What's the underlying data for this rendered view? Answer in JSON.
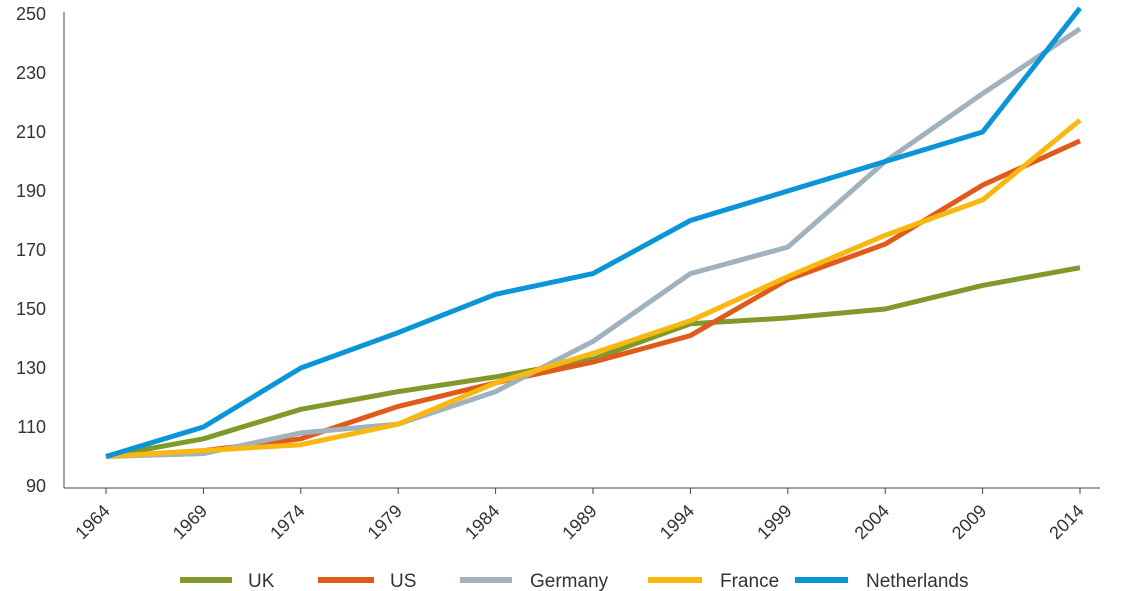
{
  "chart_data": {
    "type": "line",
    "title": "",
    "xlabel": "",
    "ylabel": "",
    "x": [
      "1964",
      "1969",
      "1974",
      "1979",
      "1984",
      "1989",
      "1994",
      "1999",
      "2004",
      "2009",
      "2014"
    ],
    "ylim": [
      90,
      250
    ],
    "yticks": [
      90,
      110,
      130,
      150,
      170,
      190,
      210,
      230,
      250
    ],
    "grid": false,
    "legend_position": "bottom",
    "series": [
      {
        "name": "UK",
        "color": "#7f9a2a",
        "values": [
          100,
          106,
          116,
          122,
          127,
          133,
          145,
          147,
          150,
          158,
          164
        ]
      },
      {
        "name": "US",
        "color": "#e05a1b",
        "values": [
          100,
          102,
          106,
          117,
          125,
          132,
          141,
          160,
          172,
          192,
          207
        ]
      },
      {
        "name": "Germany",
        "color": "#9fb2bd",
        "values": [
          100,
          101,
          108,
          111,
          122,
          139,
          162,
          171,
          200,
          223,
          245
        ]
      },
      {
        "name": "France",
        "color": "#f9b80f",
        "values": [
          100,
          102,
          104,
          111,
          125,
          135,
          146,
          161,
          175,
          187,
          214
        ]
      },
      {
        "name": "Netherlands",
        "color": "#0a96d6",
        "values": [
          100,
          110,
          130,
          142,
          155,
          162,
          180,
          190,
          200,
          210,
          252
        ]
      }
    ]
  }
}
